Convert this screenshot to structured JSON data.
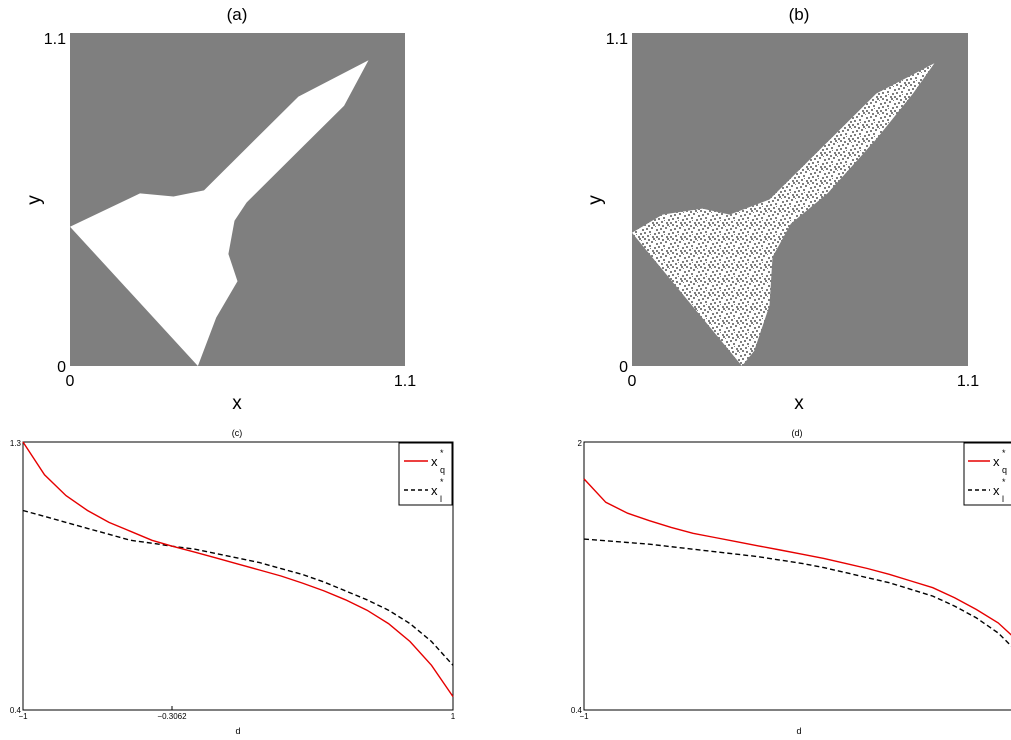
{
  "panels": {
    "a": {
      "title": "(a)",
      "xlabel": "x",
      "ylabel": "y",
      "xticks": [
        "0",
        "1.1"
      ],
      "yticks": [
        "0",
        "1.1"
      ]
    },
    "b": {
      "title": "(b)",
      "xlabel": "x",
      "ylabel": "y",
      "xticks": [
        "0",
        "1.1"
      ],
      "yticks": [
        "0",
        "1.1"
      ]
    },
    "c": {
      "title": "(c)",
      "xlabel": "d",
      "xticks": [
        "−1",
        "−0.3062",
        "1"
      ],
      "yticks": [
        "0.4",
        "1.3"
      ],
      "legend": {
        "q_base": "x",
        "q_sup": "*",
        "q_sub": "q",
        "l_base": "x",
        "l_sup": "*",
        "l_sub": "l"
      }
    },
    "d": {
      "title": "(d)",
      "xlabel": "d",
      "xticks": [
        "−1"
      ],
      "yticks": [
        "0.4",
        "2"
      ],
      "legend": {
        "q_base": "x",
        "q_sup": "*",
        "q_sub": "q",
        "l_base": "x",
        "l_sup": "*",
        "l_sub": "l"
      }
    }
  },
  "colors": {
    "basin_gray": "#7f7f7f",
    "attractor_white": "#ffffff",
    "xq_line": "#e60000",
    "xl_line": "#000000"
  },
  "chart_data": [
    {
      "type": "heatmap",
      "panel": "a",
      "description_values": "deterministic basin of attraction (white) in the (x,y) plane",
      "xlim": [
        0,
        1.1
      ],
      "ylim": [
        0,
        1.1
      ],
      "basin_boundary": [
        [
          0,
          0.46
        ],
        [
          0.23,
          0.57
        ],
        [
          0.34,
          0.56
        ],
        [
          0.44,
          0.58
        ],
        [
          0.58,
          0.72
        ],
        [
          0.75,
          0.89
        ],
        [
          0.98,
          1.01
        ],
        [
          0.9,
          0.86
        ],
        [
          0.78,
          0.74
        ],
        [
          0.66,
          0.62
        ],
        [
          0.58,
          0.54
        ],
        [
          0.54,
          0.48
        ],
        [
          0.52,
          0.37
        ],
        [
          0.55,
          0.28
        ],
        [
          0.48,
          0.16
        ],
        [
          0.42,
          0
        ]
      ]
    },
    {
      "type": "heatmap",
      "panel": "b",
      "description_values": "stochastic basin of attraction (speckled) in the (x,y) plane",
      "xlim": [
        0,
        1.1
      ],
      "ylim": [
        0,
        1.1
      ],
      "basin_boundary": [
        [
          0,
          0.44
        ],
        [
          0.1,
          0.5
        ],
        [
          0.23,
          0.52
        ],
        [
          0.32,
          0.5
        ],
        [
          0.45,
          0.55
        ],
        [
          0.6,
          0.7
        ],
        [
          0.8,
          0.9
        ],
        [
          0.99,
          1.0
        ],
        [
          0.92,
          0.9
        ],
        [
          0.8,
          0.75
        ],
        [
          0.64,
          0.57
        ],
        [
          0.52,
          0.47
        ],
        [
          0.46,
          0.36
        ],
        [
          0.45,
          0.2
        ],
        [
          0.4,
          0.05
        ],
        [
          0.36,
          0
        ]
      ]
    },
    {
      "type": "line",
      "panel": "c",
      "xlim": [
        -1,
        1
      ],
      "ylim": [
        0.4,
        1.3
      ],
      "series": [
        {
          "name": "x*q",
          "style": "solid",
          "x": [
            -1,
            -0.9,
            -0.8,
            -0.7,
            -0.6,
            -0.5,
            -0.4,
            -0.3062,
            -0.2,
            -0.1,
            0,
            0.1,
            0.2,
            0.3,
            0.4,
            0.5,
            0.6,
            0.7,
            0.8,
            0.9,
            1
          ],
          "y": [
            1.3,
            1.19,
            1.12,
            1.07,
            1.03,
            1.0,
            0.97,
            0.95,
            0.93,
            0.91,
            0.89,
            0.87,
            0.85,
            0.826,
            0.8,
            0.77,
            0.735,
            0.69,
            0.63,
            0.55,
            0.445
          ]
        },
        {
          "name": "x*l",
          "style": "dashed",
          "x": [
            -1,
            -0.9,
            -0.8,
            -0.7,
            -0.6,
            -0.5,
            -0.4,
            -0.3062,
            -0.2,
            -0.1,
            0,
            0.1,
            0.2,
            0.3,
            0.4,
            0.5,
            0.6,
            0.7,
            0.8,
            0.9,
            1
          ],
          "y": [
            1.07,
            1.05,
            1.03,
            1.01,
            0.99,
            0.97,
            0.96,
            0.95,
            0.94,
            0.925,
            0.91,
            0.895,
            0.875,
            0.855,
            0.83,
            0.8,
            0.77,
            0.735,
            0.69,
            0.63,
            0.55
          ]
        }
      ]
    },
    {
      "type": "line",
      "panel": "d",
      "xlim": [
        -1,
        1
      ],
      "ylim": [
        0.4,
        2
      ],
      "series": [
        {
          "name": "x*q",
          "style": "solid",
          "x": [
            -1,
            -0.9,
            -0.8,
            -0.7,
            -0.6,
            -0.5,
            -0.4,
            -0.3,
            -0.2,
            -0.1,
            0,
            0.1,
            0.2,
            0.3,
            0.4,
            0.5,
            0.6,
            0.7,
            0.8,
            0.9,
            1
          ],
          "y": [
            1.78,
            1.64,
            1.575,
            1.53,
            1.49,
            1.455,
            1.43,
            1.405,
            1.38,
            1.355,
            1.33,
            1.305,
            1.275,
            1.245,
            1.21,
            1.17,
            1.13,
            1.07,
            1.0,
            0.92,
            0.8
          ]
        },
        {
          "name": "x*l",
          "style": "dashed",
          "x": [
            -1,
            -0.9,
            -0.8,
            -0.7,
            -0.6,
            -0.5,
            -0.4,
            -0.3,
            -0.2,
            -0.1,
            0,
            0.1,
            0.2,
            0.3,
            0.4,
            0.5,
            0.6,
            0.7,
            0.8,
            0.9,
            1
          ],
          "y": [
            1.42,
            1.41,
            1.4,
            1.39,
            1.375,
            1.36,
            1.345,
            1.33,
            1.315,
            1.295,
            1.275,
            1.25,
            1.22,
            1.19,
            1.16,
            1.12,
            1.08,
            1.02,
            0.95,
            0.86,
            0.73
          ]
        }
      ]
    }
  ]
}
